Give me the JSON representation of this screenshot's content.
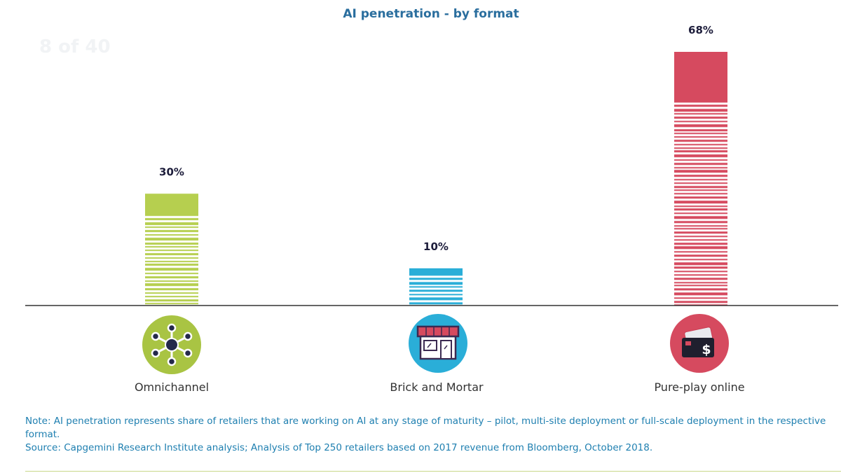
{
  "watermark": "8 of 40",
  "chart_data": {
    "type": "bar",
    "title": "AI penetration - by format",
    "categories": [
      "Omnichannel",
      "Brick and Mortar",
      "Pure-play online"
    ],
    "values": [
      30,
      10,
      68
    ],
    "value_labels": [
      "30%",
      "10%",
      "68%"
    ],
    "colors": [
      "#b6cf4f",
      "#2aaed8",
      "#d64a5f"
    ],
    "icons": [
      "network-icon",
      "storefront-icon",
      "credit-card-icon"
    ],
    "xlabel": "",
    "ylabel": "",
    "ylim": [
      0,
      68
    ],
    "grid": false
  },
  "notes": {
    "note": "Note: AI penetration represents share of retailers that are working on AI at any stage of maturity – pilot, multi-site deployment or full-scale deployment in the respective format.",
    "source": "Source: Capgemini Research Institute analysis; Analysis of Top 250 retailers based on 2017 revenue from Bloomberg, October 2018."
  }
}
